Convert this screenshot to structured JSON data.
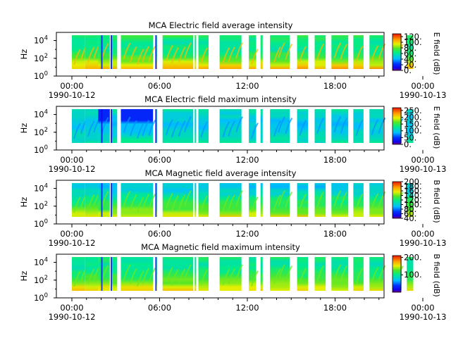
{
  "figure": {
    "type": "spectrogram_stack",
    "panels": [
      {
        "title": "MCA  Electric field average intensity",
        "ylabel": "Hz",
        "colorbar_label": "E field (dB)",
        "colorbar_ticks": [
          "0.",
          "20.",
          "40.",
          "60.",
          "80.",
          "100.",
          "120."
        ],
        "colorbar_range": [
          0,
          130
        ],
        "style": "avg_e"
      },
      {
        "title": "MCA  Electric field maximum intensity",
        "ylabel": "Hz",
        "colorbar_label": "E field (dB)",
        "colorbar_ticks": [
          "0.",
          "50.",
          "100.",
          "150.",
          "200.",
          "250."
        ],
        "colorbar_range": [
          0,
          270
        ],
        "style": "max_e"
      },
      {
        "title": "MCA  Magnetic field average intensity",
        "ylabel": "Hz",
        "colorbar_label": "B field (dB)",
        "colorbar_ticks": [
          "40.",
          "60.",
          "80.",
          "100.",
          "120.",
          "140.",
          "160.",
          "180.",
          "200."
        ],
        "colorbar_range": [
          40,
          200
        ],
        "style": "avg_b"
      },
      {
        "title": "MCA  Magnetic field maximum intensity",
        "ylabel": "Hz",
        "colorbar_label": "B field (dB)",
        "colorbar_ticks": [
          "100.",
          "200."
        ],
        "colorbar_range": [
          0,
          210
        ],
        "style": "max_b"
      }
    ],
    "x_ticks": [
      {
        "time": "00:00",
        "date": "1990-10-12"
      },
      {
        "time": "06:00",
        "date": ""
      },
      {
        "time": "12:00",
        "date": ""
      },
      {
        "time": "18:00",
        "date": ""
      },
      {
        "time": "00:00",
        "date": "1990-10-13"
      }
    ],
    "y_ticks": [
      "10^0",
      "10^2",
      "10^4"
    ],
    "y_tick_labels": [
      {
        "base": "10",
        "exp": "0"
      },
      {
        "base": "10",
        "exp": "2"
      },
      {
        "base": "10",
        "exp": "4"
      }
    ]
  },
  "chart_data": {
    "type": "heatmap",
    "x_unit": "hours since 1990-10-12 00:00",
    "xlim": [
      0,
      24
    ],
    "y_scale": "log",
    "ylim_hz": [
      1,
      30000
    ],
    "data_coverage_hours": [
      [
        0.0,
        0.9
      ],
      [
        0.9,
        1.8
      ],
      [
        1.8,
        2.6
      ],
      [
        2.7,
        3.1
      ],
      [
        3.35,
        5.55
      ],
      [
        5.75,
        5.82
      ],
      [
        6.2,
        8.3
      ],
      [
        8.4,
        8.5
      ],
      [
        8.65,
        9.35
      ],
      [
        10.1,
        11.6
      ],
      [
        12.1,
        12.6
      ],
      [
        12.9,
        13.05
      ],
      [
        13.55,
        14.9
      ],
      [
        15.4,
        16.15
      ],
      [
        16.6,
        17.35
      ],
      [
        17.75,
        18.9
      ],
      [
        19.25,
        19.95
      ],
      [
        20.35,
        21.3
      ],
      [
        22.05,
        22.55
      ],
      [
        22.9,
        23.35
      ]
    ],
    "series": [
      {
        "name": "E field average",
        "unit": "dB",
        "range": [
          0,
          130
        ]
      },
      {
        "name": "E field maximum",
        "unit": "dB",
        "range": [
          0,
          270
        ]
      },
      {
        "name": "B field average",
        "unit": "dB",
        "range": [
          40,
          200
        ]
      },
      {
        "name": "B field maximum",
        "unit": "dB",
        "range": [
          0,
          210
        ]
      }
    ]
  }
}
